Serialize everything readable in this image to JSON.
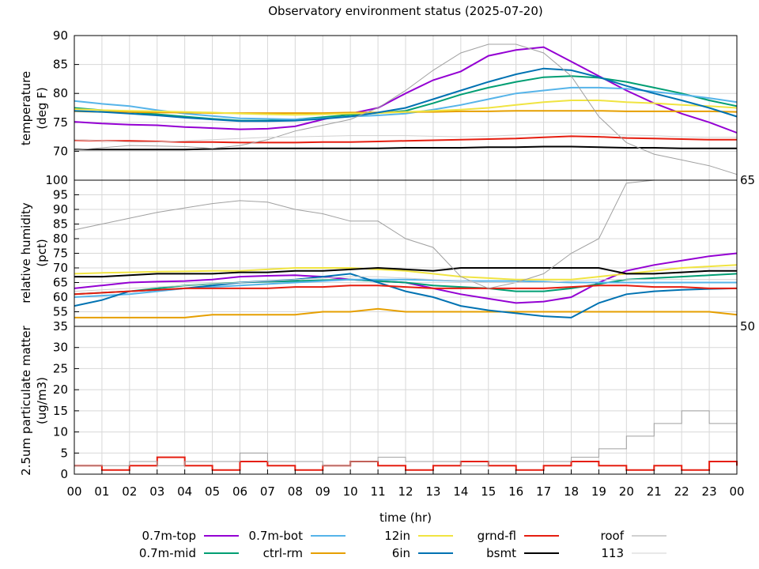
{
  "chart_data": [
    {
      "type": "line",
      "title": "Observatory environment status (2025-07-20)",
      "ylabel": [
        "temperature",
        "(deg F)"
      ],
      "ylim": [
        65,
        90
      ],
      "yticks": [
        65,
        70,
        75,
        80,
        85,
        90
      ],
      "grid": true,
      "x": [
        0,
        1,
        2,
        3,
        4,
        5,
        6,
        7,
        8,
        9,
        10,
        11,
        12,
        13,
        14,
        15,
        16,
        17,
        18,
        19,
        20,
        21,
        22,
        23,
        24
      ],
      "series": [
        {
          "name": "0.7m-top",
          "color": "#9400d3",
          "values": [
            75.1,
            74.8,
            74.6,
            74.5,
            74.2,
            74.0,
            73.8,
            73.9,
            74.3,
            75.5,
            76.5,
            77.5,
            80.0,
            82.3,
            83.8,
            86.5,
            87.5,
            88.0,
            85.5,
            83.0,
            80.5,
            78.3,
            76.5,
            75.0,
            73.2
          ]
        },
        {
          "name": "0.7m-mid",
          "color": "#009e73",
          "values": [
            77.5,
            77.1,
            76.8,
            76.4,
            76.0,
            75.6,
            75.3,
            75.3,
            75.5,
            75.9,
            76.3,
            76.6,
            77.0,
            78.3,
            79.8,
            81.0,
            82.0,
            82.8,
            83.0,
            82.7,
            82.0,
            81.0,
            80.0,
            78.8,
            77.8
          ]
        },
        {
          "name": "0.7m-bot",
          "color": "#56b4e9",
          "values": [
            78.7,
            78.2,
            77.8,
            77.1,
            76.5,
            76.1,
            75.7,
            75.6,
            75.5,
            75.7,
            76.0,
            76.2,
            76.5,
            77.2,
            78.0,
            79.0,
            80.0,
            80.5,
            81.0,
            81.0,
            80.8,
            80.3,
            79.8,
            79.2,
            78.5
          ]
        },
        {
          "name": "ctrl-rm",
          "color": "#e69f00",
          "values": [
            76.9,
            76.8,
            76.8,
            76.7,
            76.7,
            76.6,
            76.6,
            76.6,
            76.6,
            76.6,
            76.7,
            76.7,
            76.8,
            76.8,
            76.9,
            76.9,
            77.0,
            77.0,
            77.0,
            77.0,
            76.9,
            76.9,
            76.9,
            76.9,
            76.8
          ]
        },
        {
          "name": "12in",
          "color": "#f0e442",
          "values": [
            77.3,
            77.1,
            77.0,
            76.9,
            76.8,
            76.7,
            76.5,
            76.4,
            76.3,
            76.4,
            76.5,
            76.6,
            76.8,
            77.0,
            77.2,
            77.5,
            78.0,
            78.5,
            78.8,
            78.8,
            78.5,
            78.3,
            78.0,
            77.8,
            77.5
          ]
        },
        {
          "name": "6in",
          "color": "#0072b2",
          "values": [
            77.0,
            76.8,
            76.5,
            76.2,
            75.8,
            75.5,
            75.2,
            75.2,
            75.3,
            75.6,
            76.0,
            76.7,
            77.5,
            79.0,
            80.5,
            82.0,
            83.3,
            84.3,
            84.0,
            82.8,
            81.3,
            80.0,
            78.8,
            77.5,
            76.0
          ]
        },
        {
          "name": "grnd-fl",
          "color": "#e51e10",
          "values": [
            71.9,
            71.8,
            71.8,
            71.7,
            71.6,
            71.6,
            71.5,
            71.5,
            71.5,
            71.6,
            71.6,
            71.7,
            71.8,
            71.9,
            72.0,
            72.1,
            72.2,
            72.4,
            72.6,
            72.5,
            72.3,
            72.2,
            72.1,
            72.0,
            72.0
          ]
        },
        {
          "name": "bsmt",
          "color": "#000000",
          "values": [
            70.3,
            70.3,
            70.3,
            70.3,
            70.3,
            70.4,
            70.5,
            70.5,
            70.5,
            70.5,
            70.5,
            70.5,
            70.6,
            70.6,
            70.6,
            70.7,
            70.7,
            70.8,
            70.8,
            70.7,
            70.6,
            70.6,
            70.5,
            70.5,
            70.5
          ]
        },
        {
          "name": "roof",
          "color": "#a0a0a0",
          "values": [
            70.2,
            70.6,
            71.0,
            70.9,
            70.8,
            70.5,
            71.0,
            72.0,
            73.5,
            74.5,
            75.5,
            77.5,
            80.5,
            84.0,
            87.0,
            88.5,
            88.5,
            87.0,
            83.0,
            76.0,
            71.5,
            69.5,
            68.5,
            67.5,
            66.0
          ]
        },
        {
          "name": "113",
          "color": "#d0d0d0",
          "values": [
            72.0,
            71.8,
            71.6,
            71.6,
            71.8,
            72.0,
            72.2,
            72.4,
            72.5,
            72.6,
            72.7,
            72.7,
            72.7,
            72.6,
            72.5,
            72.6,
            72.8,
            73.0,
            73.1,
            73.0,
            72.8,
            72.7,
            72.5,
            72.4,
            72.4
          ]
        }
      ]
    },
    {
      "type": "line",
      "ylabel": [
        "relative humidity",
        "(pct)"
      ],
      "ylim": [
        50,
        100
      ],
      "yticks": [
        50,
        55,
        60,
        65,
        70,
        75,
        80,
        85,
        90,
        95,
        100
      ],
      "grid": true,
      "x": [
        0,
        1,
        2,
        3,
        4,
        5,
        6,
        7,
        8,
        9,
        10,
        11,
        12,
        13,
        14,
        15,
        16,
        17,
        18,
        19,
        20,
        21,
        22,
        23,
        24
      ],
      "series": [
        {
          "name": "0.7m-top",
          "color": "#9400d3",
          "values": [
            63,
            64,
            65,
            65.3,
            65.5,
            66,
            67,
            67.3,
            67.5,
            67,
            66,
            65.5,
            65,
            63,
            61,
            59.5,
            58,
            58.5,
            60,
            65,
            69,
            71,
            72.5,
            74,
            75
          ]
        },
        {
          "name": "0.7m-mid",
          "color": "#009e73",
          "values": [
            61,
            61.5,
            62,
            63,
            64,
            64.5,
            65,
            65.3,
            65.5,
            65.8,
            66,
            65.5,
            65,
            64,
            63.5,
            63,
            62,
            62,
            63,
            64.5,
            66,
            66.5,
            67,
            67.5,
            68
          ]
        },
        {
          "name": "0.7m-bot",
          "color": "#56b4e9",
          "values": [
            60,
            60.5,
            61,
            62,
            63,
            63.5,
            64,
            64.5,
            65,
            65.5,
            66,
            66,
            66,
            65.8,
            65.5,
            65.5,
            65.5,
            65.3,
            65,
            65,
            65,
            65,
            65,
            65,
            65
          ]
        },
        {
          "name": "ctrl-rm",
          "color": "#e69f00",
          "values": [
            53,
            53,
            53,
            53,
            53,
            54,
            54,
            54,
            54,
            55,
            55,
            56,
            55,
            55,
            55,
            55,
            55,
            55,
            55,
            55,
            55,
            55,
            55,
            55,
            54
          ]
        },
        {
          "name": "12in",
          "color": "#f0e442",
          "values": [
            68,
            68.3,
            68.5,
            68.7,
            68.8,
            69,
            69,
            69.5,
            70,
            70,
            70,
            69.5,
            69,
            68,
            67,
            66.5,
            66,
            66,
            66,
            67,
            68,
            69,
            70,
            70.5,
            71
          ]
        },
        {
          "name": "6in",
          "color": "#0072b2",
          "values": [
            57,
            59,
            62,
            62.5,
            63,
            64,
            65,
            65.5,
            66,
            67,
            68,
            65,
            62,
            60,
            57,
            55.5,
            54.5,
            53.5,
            53,
            58,
            61,
            62,
            62.5,
            62.8,
            63
          ]
        },
        {
          "name": "grnd-fl",
          "color": "#e51e10",
          "values": [
            61,
            61.5,
            62,
            62.5,
            63,
            63,
            63,
            63,
            63.5,
            63.5,
            64,
            64,
            63.5,
            63,
            63,
            63,
            63,
            63,
            63.5,
            64,
            64,
            63.5,
            63.5,
            63,
            63
          ]
        },
        {
          "name": "bsmt",
          "color": "#000000",
          "values": [
            67,
            67,
            67.5,
            68,
            68,
            68,
            68.5,
            68.5,
            69,
            69,
            69.5,
            70,
            69.5,
            69,
            70,
            70,
            70,
            70,
            70,
            70,
            68,
            68,
            68.5,
            69,
            69
          ]
        },
        {
          "name": "roof",
          "color": "#a0a0a0",
          "values": [
            83,
            85,
            87,
            89,
            90.5,
            92,
            93,
            92.5,
            90,
            88.5,
            86,
            86,
            80,
            77,
            67,
            63,
            65,
            68,
            75,
            80,
            99,
            100,
            100,
            100,
            100
          ]
        },
        {
          "name": "113",
          "color": "#d0d0d0",
          "values": [
            62,
            62.5,
            63,
            63.5,
            64,
            64.5,
            65,
            65.5,
            66,
            66.5,
            67,
            67,
            66.5,
            66,
            65.5,
            65,
            65,
            65,
            65.5,
            66,
            66,
            66,
            66,
            66,
            66
          ]
        }
      ]
    },
    {
      "type": "line",
      "ylabel": [
        "2.5um particulate matter",
        "(ug/m3)"
      ],
      "ylim": [
        0,
        35
      ],
      "yticks": [
        0,
        5,
        10,
        15,
        20,
        25,
        30,
        35
      ],
      "grid": true,
      "xlabel": "time (hr)",
      "xticks": [
        "00",
        "01",
        "02",
        "03",
        "04",
        "05",
        "06",
        "07",
        "08",
        "09",
        "10",
        "11",
        "12",
        "13",
        "14",
        "15",
        "16",
        "17",
        "18",
        "19",
        "20",
        "21",
        "22",
        "23",
        "00"
      ],
      "x": [
        0,
        1,
        2,
        3,
        4,
        5,
        6,
        7,
        8,
        9,
        10,
        11,
        12,
        13,
        14,
        15,
        16,
        17,
        18,
        19,
        20,
        21,
        22,
        23,
        24
      ],
      "series": [
        {
          "name": "grnd-fl",
          "color": "#e51e10",
          "values": [
            2,
            1,
            2,
            4,
            2,
            1,
            3,
            2,
            1,
            2,
            3,
            2,
            1,
            2,
            3,
            2,
            1,
            2,
            3,
            2,
            1,
            2,
            1,
            3,
            2
          ]
        },
        {
          "name": "roof",
          "color": "#a0a0a0",
          "values": [
            2,
            2,
            3,
            2,
            3,
            3,
            5,
            3,
            3,
            2,
            3,
            4,
            3,
            3,
            2,
            3,
            3,
            3,
            4,
            6,
            9,
            12,
            15,
            12,
            8
          ]
        }
      ]
    }
  ],
  "legend": {
    "entries": [
      "0.7m-top",
      "0.7m-mid",
      "0.7m-bot",
      "ctrl-rm",
      "12in",
      "6in",
      "grnd-fl",
      "bsmt",
      "roof",
      "113"
    ],
    "placement": "bottom"
  }
}
